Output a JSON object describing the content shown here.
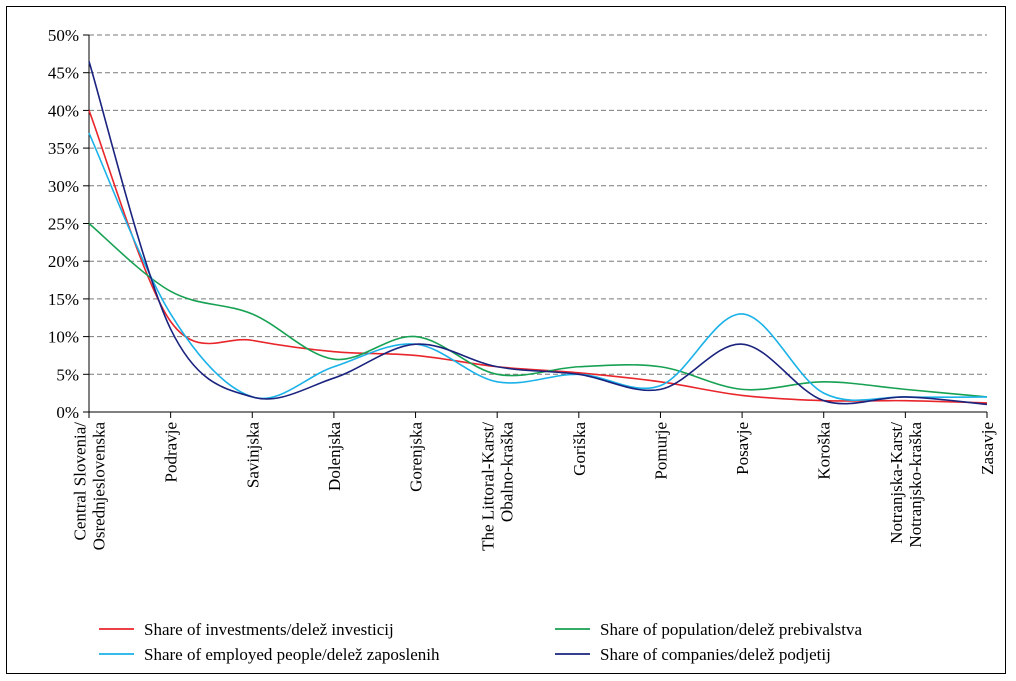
{
  "chart_data": {
    "type": "line",
    "title": "",
    "xlabel": "",
    "ylabel": "",
    "ylim": [
      0,
      50
    ],
    "ytick_step": 5,
    "y_tick_format": "percent",
    "grid": true,
    "legend_position": "bottom",
    "categories": [
      "Central Slovenia/ Osrednjeslovenska",
      "Podravje",
      "Savinjska",
      "Dolenjska",
      "Gorenjska",
      "The Littoral-Karst/ Obalno-kraška",
      "Goriška",
      "Pomurje",
      "Posavje",
      "Koroška",
      "Notranjska-Karst/ Notranjsko-kraška",
      "Zasavje"
    ],
    "series": [
      {
        "name": "Share of investments/delež investicij",
        "color": "#e8262b",
        "values": [
          40,
          12,
          9.5,
          8,
          7.5,
          6,
          5.2,
          4,
          2.2,
          1.5,
          1.5,
          1.2
        ]
      },
      {
        "name": "Share of population/delež prebivalstva",
        "color": "#17a153",
        "values": [
          25,
          16,
          13,
          7,
          10,
          5,
          6,
          6,
          3,
          4,
          3,
          2
        ]
      },
      {
        "name": "Share of employed people/delež zaposlenih",
        "color": "#1ab2e8",
        "values": [
          37,
          13,
          2,
          6,
          9,
          4,
          5,
          3.5,
          13,
          2.5,
          2,
          2
        ]
      },
      {
        "name": "Share of companies/delež podjetij",
        "color": "#1a237e",
        "values": [
          46.5,
          11,
          2,
          4.5,
          9,
          6,
          5,
          3,
          9,
          1.5,
          2,
          1
        ]
      }
    ]
  }
}
